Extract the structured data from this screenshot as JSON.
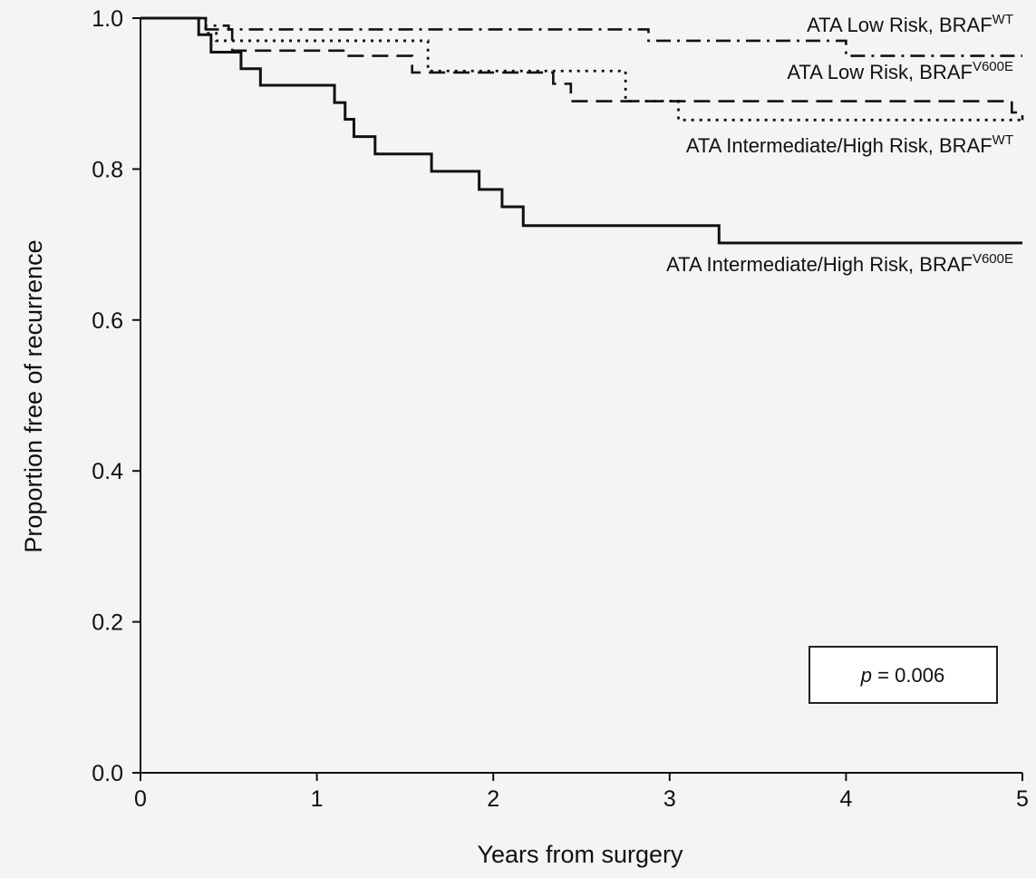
{
  "chart_data": {
    "type": "line",
    "title": "",
    "xlabel": "Years from surgery",
    "ylabel": "Proportion free of recurrence",
    "xlim": [
      0,
      5
    ],
    "ylim": [
      0,
      1
    ],
    "xticks": [
      "0",
      "1",
      "2",
      "3",
      "4",
      "5"
    ],
    "yticks": [
      "0.0",
      "0.2",
      "0.4",
      "0.6",
      "0.8",
      "1.0"
    ],
    "grid": false,
    "legend": "inline-labels",
    "annotation": {
      "italic": "p",
      "text": " = 0.006"
    },
    "series": [
      {
        "name": "ATA Low Risk, BRAF",
        "sup": "WT",
        "style": "dashdot",
        "x": [
          0,
          0.37,
          0.5,
          2.88,
          4.0,
          5.0
        ],
        "y": [
          1.0,
          0.99,
          0.985,
          0.97,
          0.95,
          0.95
        ]
      },
      {
        "name": "ATA Low Risk, BRAF",
        "sup": "V600E",
        "style": "dotted",
        "x": [
          0,
          0.37,
          0.43,
          1.63,
          2.75,
          3.05,
          4.95,
          5.0
        ],
        "y": [
          1.0,
          0.98,
          0.97,
          0.93,
          0.89,
          0.865,
          0.865,
          0.865
        ]
      },
      {
        "name": "ATA Intermediate/High Risk, BRAF",
        "sup": "WT",
        "style": "dashed",
        "x": [
          0,
          0.37,
          0.52,
          1.16,
          1.54,
          2.34,
          2.44,
          4.94,
          5.0
        ],
        "y": [
          1.0,
          0.985,
          0.957,
          0.95,
          0.928,
          0.913,
          0.89,
          0.875,
          0.865
        ]
      },
      {
        "name": "ATA Intermediate/High Risk, BRAF",
        "sup": "V600E",
        "style": "solid",
        "x": [
          0,
          0.33,
          0.4,
          0.57,
          0.68,
          1.1,
          1.16,
          1.21,
          1.33,
          1.65,
          1.92,
          2.05,
          2.17,
          2.75,
          3.28,
          5.0
        ],
        "y": [
          1.0,
          0.978,
          0.955,
          0.933,
          0.911,
          0.888,
          0.866,
          0.843,
          0.82,
          0.797,
          0.773,
          0.75,
          0.725,
          0.725,
          0.702,
          0.702
        ]
      }
    ]
  }
}
